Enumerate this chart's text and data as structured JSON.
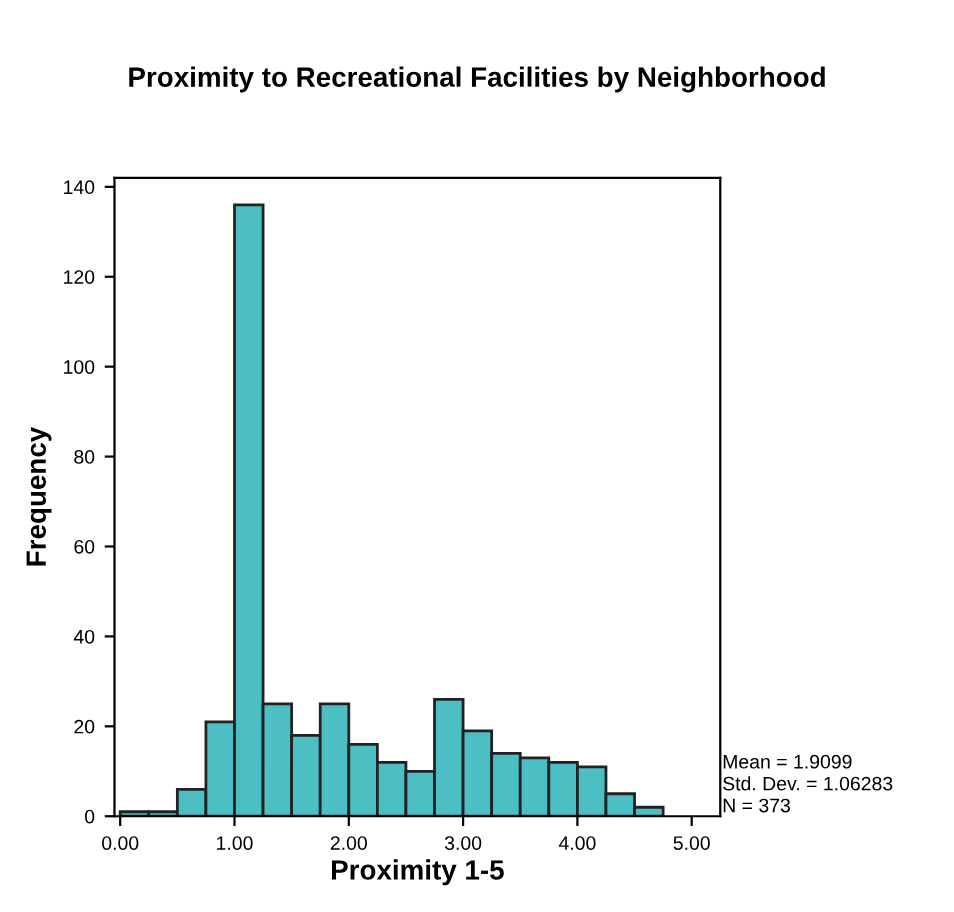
{
  "chart_data": {
    "type": "histogram",
    "title": "Proximity to Recreational Facilities by Neighborhood",
    "xlabel": "Proximity 1-5",
    "ylabel": "Frequency",
    "bins": [
      0,
      0.25,
      0.5,
      0.75,
      1,
      1.25,
      1.5,
      1.75,
      2,
      2.25,
      2.5,
      2.75,
      3,
      3.25,
      3.5,
      3.75,
      4,
      4.25,
      4.5,
      4.75
    ],
    "values": [
      1,
      1,
      6,
      21,
      136,
      25,
      18,
      25,
      16,
      12,
      10,
      26,
      19,
      14,
      13,
      12,
      11,
      5,
      2
    ],
    "color": "#4bbfc4",
    "xlim": [
      -0.05,
      5.25
    ],
    "xticks": [
      {
        "value": 0,
        "label": "0.00"
      },
      {
        "value": 1,
        "label": "1.00"
      },
      {
        "value": 2,
        "label": "2.00"
      },
      {
        "value": 3,
        "label": "3.00"
      },
      {
        "value": 4,
        "label": "4.00"
      },
      {
        "value": 5,
        "label": "5.00"
      }
    ],
    "ylim": [
      0,
      142
    ],
    "yticks": [
      0,
      20,
      40,
      60,
      80,
      100,
      120,
      140
    ],
    "grid": false,
    "legend": false,
    "annotations": [
      "Mean = 1.9099",
      "Std. Dev. = 1.06283",
      "N = 373"
    ]
  }
}
